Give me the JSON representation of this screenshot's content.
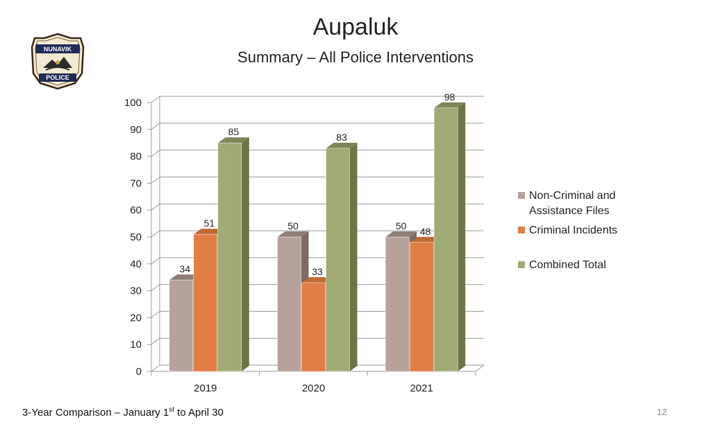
{
  "slide": {
    "title": "Aupaluk",
    "subtitle": "Summary – All Police Interventions",
    "footer_prefix": "3-Year Comparison – January 1",
    "footer_sup": "st",
    "footer_suffix": " to April 30",
    "page_number": "12"
  },
  "logo": {
    "top_text": "NUNAVIK",
    "bottom_text": "POLICE",
    "icon": "police-badge-icon"
  },
  "colors": {
    "series": [
      "#b5a29b",
      "#e07e45",
      "#9faa75"
    ],
    "series_side": [
      "#7d6b64",
      "#a8552a",
      "#6c7548"
    ],
    "series_top": [
      "#8f7e78",
      "#c06a36",
      "#7d8658"
    ],
    "grid": "#9a9a9a"
  },
  "chart_data": {
    "type": "bar",
    "categories": [
      "2019",
      "2020",
      "2021"
    ],
    "series": [
      {
        "name": "Non-Criminal and Assistance Files",
        "values": [
          34,
          50,
          50
        ]
      },
      {
        "name": "Criminal Incidents",
        "values": [
          51,
          33,
          48
        ]
      },
      {
        "name": "Combined Total",
        "values": [
          85,
          83,
          98
        ]
      }
    ],
    "ylim": [
      0,
      100
    ],
    "y_ticks": [
      0,
      10,
      20,
      30,
      40,
      50,
      60,
      70,
      80,
      90,
      100
    ],
    "grid": true,
    "three_d": true,
    "legend_position": "right",
    "legend": [
      "Non-Criminal and",
      "Assistance Files",
      "Criminal Incidents",
      "Combined Total"
    ]
  }
}
